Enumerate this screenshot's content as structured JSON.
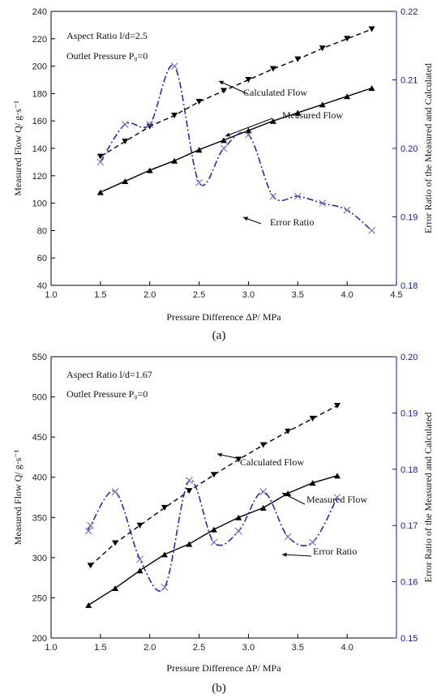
{
  "chart_data": [
    {
      "type": "line",
      "caption": "(a)",
      "xlabel": "Pressure Difference ΔP/ MPa",
      "ylabel": "Measured Flow  Q/ g·s⁻¹",
      "y2label": "Error Ratio of the Measured and Calculated",
      "xlim": [
        1.0,
        4.5
      ],
      "ylim": [
        40,
        240
      ],
      "y2lim": [
        0.18,
        0.22
      ],
      "xticks": [
        "1.0",
        "1.5",
        "2.0",
        "2.5",
        "3.0",
        "3.5",
        "4.0",
        "4.5"
      ],
      "yticks": [
        "40",
        "60",
        "80",
        "100",
        "120",
        "140",
        "160",
        "180",
        "200",
        "220",
        "240"
      ],
      "y2ticks": [
        "0.18",
        "0.19",
        "0.20",
        "0.21",
        "0.22"
      ],
      "info_lines": [
        "Aspect Ratio  l/d=2.5",
        "Outlet Pressure P₀=0"
      ],
      "series": [
        {
          "name": "Calculated Flow",
          "axis": "left",
          "style": "dashed",
          "marker": "triangle-down",
          "color": "#000000",
          "x": [
            1.5,
            1.75,
            2.0,
            2.25,
            2.5,
            2.75,
            3.0,
            3.25,
            3.5,
            3.75,
            4.0,
            4.25
          ],
          "y": [
            134,
            145,
            156,
            164,
            174,
            182,
            190,
            198,
            205,
            213,
            220,
            227
          ]
        },
        {
          "name": "Measured Flow",
          "axis": "left",
          "style": "solid",
          "marker": "triangle-up",
          "color": "#000000",
          "x": [
            1.5,
            1.75,
            2.0,
            2.25,
            2.5,
            2.75,
            3.0,
            3.25,
            3.5,
            3.75,
            4.0,
            4.25
          ],
          "y": [
            108,
            116,
            124,
            131,
            139,
            146,
            153,
            160,
            166,
            172,
            178,
            184
          ]
        },
        {
          "name": "Error Ratio",
          "axis": "right",
          "style": "dashdot",
          "marker": "x",
          "color": "#2929a8",
          "x": [
            1.5,
            1.75,
            2.0,
            2.25,
            2.5,
            2.75,
            3.0,
            3.25,
            3.5,
            3.75,
            4.0,
            4.25
          ],
          "y": [
            0.198,
            0.2035,
            0.2035,
            0.212,
            0.195,
            0.2,
            0.202,
            0.193,
            0.193,
            0.192,
            0.191,
            0.188
          ]
        }
      ],
      "annotations": [
        "Calculated Flow",
        "Measured Flow",
        "Error Ratio"
      ]
    },
    {
      "type": "line",
      "caption": "(b)",
      "xlabel": "Pressure Difference ΔP/ MPa",
      "ylabel": "Measured Flow  Q/ g·s⁻¹",
      "y2label": "Error Ratio of the Measured and Calculated",
      "xlim": [
        1.0,
        4.5
      ],
      "ylim": [
        200,
        550
      ],
      "y2lim": [
        0.15,
        0.2
      ],
      "xticks": [
        "1.0",
        "1.5",
        "2.0",
        "2.5",
        "3.0",
        "3.5",
        "4.0"
      ],
      "yticks": [
        "200",
        "250",
        "300",
        "350",
        "400",
        "450",
        "500",
        "550"
      ],
      "y2ticks": [
        "0.15",
        "0.16",
        "0.17",
        "0.18",
        "0.19",
        "0.20"
      ],
      "info_lines": [
        "Aspect Ratio  l/d=1.67",
        "Outlet Pressure P₀=0"
      ],
      "series": [
        {
          "name": "Calculated Flow",
          "axis": "left",
          "style": "dashed",
          "marker": "triangle-down",
          "color": "#000000",
          "x": [
            1.4,
            1.65,
            1.9,
            2.15,
            2.4,
            2.65,
            2.9,
            3.15,
            3.4,
            3.65,
            3.9
          ],
          "y": [
            290,
            318,
            340,
            362,
            383,
            403,
            422,
            440,
            457,
            473,
            489
          ]
        },
        {
          "name": "Measured Flow",
          "axis": "left",
          "style": "solid",
          "marker": "triangle-up",
          "color": "#000000",
          "x": [
            1.38,
            1.65,
            1.9,
            2.15,
            2.4,
            2.65,
            2.9,
            3.15,
            3.4,
            3.65,
            3.9
          ],
          "y": [
            241,
            262,
            284,
            304,
            317,
            335,
            350,
            362,
            380,
            393,
            402
          ]
        },
        {
          "name": "Error Ratio",
          "axis": "right",
          "style": "dashdot",
          "marker": "x",
          "color": "#2929a8",
          "x": [
            1.38,
            1.4,
            1.65,
            1.9,
            2.15,
            2.4,
            2.65,
            2.9,
            3.15,
            3.4,
            3.65,
            3.9
          ],
          "y": [
            0.169,
            0.17,
            0.176,
            0.164,
            0.159,
            0.178,
            0.167,
            0.169,
            0.176,
            0.168,
            0.167,
            0.175
          ]
        }
      ],
      "annotations": [
        "Calculated Flow",
        "Measured Flow",
        "Error Ratio"
      ]
    }
  ]
}
